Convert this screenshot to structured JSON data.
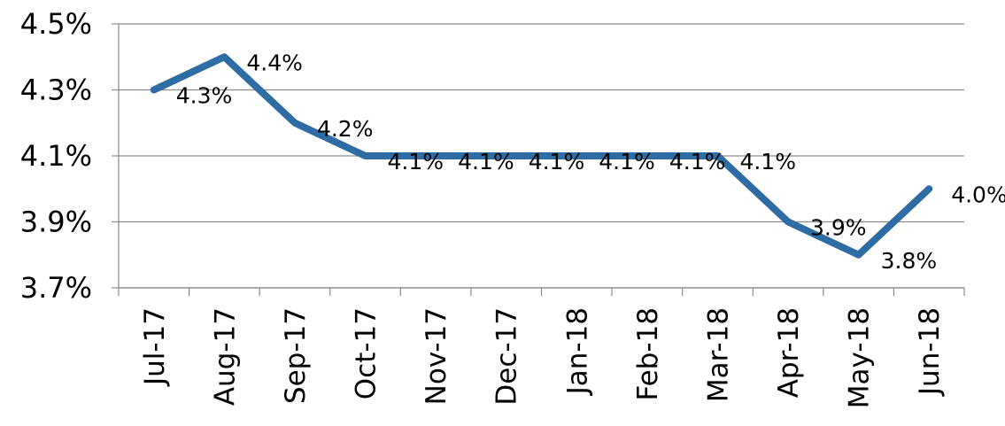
{
  "chart_data": {
    "type": "line",
    "title": "",
    "xlabel": "",
    "ylabel": "",
    "categories": [
      "Jul-17",
      "Aug-17",
      "Sep-17",
      "Oct-17",
      "Nov-17",
      "Dec-17",
      "Jan-18",
      "Feb-18",
      "Mar-18",
      "Apr-18",
      "May-18",
      "Jun-18"
    ],
    "series": [
      {
        "values": [
          4.3,
          4.4,
          4.2,
          4.1,
          4.1,
          4.1,
          4.1,
          4.1,
          4.1,
          3.9,
          3.8,
          4.0
        ],
        "data_labels": [
          "4.3%",
          "4.4%",
          "4.2%",
          "4.1%",
          "4.1%",
          "4.1%",
          "4.1%",
          "4.1%",
          "4.1%",
          "3.9%",
          "3.8%",
          "4.0%"
        ],
        "color": "#2e6da4"
      }
    ],
    "y_ticks": [
      3.7,
      3.9,
      4.1,
      4.3,
      4.5
    ],
    "y_tick_labels": [
      "3.7%",
      "3.9%",
      "4.1%",
      "4.3%",
      "4.5%"
    ],
    "ylim": [
      3.7,
      4.5
    ],
    "grid": true,
    "legend": "none",
    "grid_color": "#8c8c8c",
    "axis_color": "#8c8c8c"
  }
}
